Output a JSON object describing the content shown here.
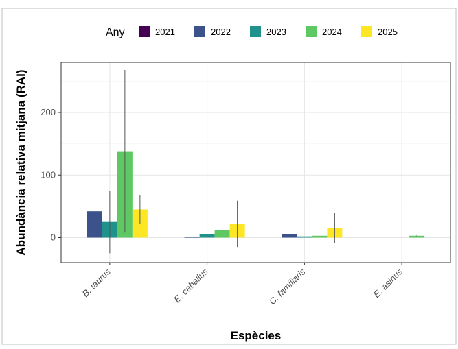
{
  "chart_data": {
    "type": "bar",
    "title": "",
    "xlabel": "Espècies",
    "ylabel": "Abundància relativa mitjana (RAI)",
    "categories": [
      "B. taurus",
      "E. caballus",
      "C. familiaris",
      "E. asinus"
    ],
    "yticks": [
      0,
      100,
      200
    ],
    "ylim": [
      -40,
      280
    ],
    "grid": true,
    "legend": {
      "title": "Any",
      "position": "top"
    },
    "colors": {
      "2021": "#440154",
      "2022": "#3b528b",
      "2023": "#21918c",
      "2024": "#5ec962",
      "2025": "#fde725"
    },
    "series": [
      {
        "name": "2021",
        "values": [
          null,
          null,
          null,
          null
        ],
        "errors": [
          null,
          null,
          null,
          null
        ]
      },
      {
        "name": "2022",
        "values": [
          42,
          1,
          5,
          null
        ],
        "errors": [
          null,
          null,
          null,
          null
        ]
      },
      {
        "name": "2023",
        "values": [
          25,
          5,
          2,
          null
        ],
        "errors": [
          50,
          null,
          null,
          null
        ]
      },
      {
        "name": "2024",
        "values": [
          138,
          12,
          3,
          3
        ],
        "errors": [
          130,
          2,
          null,
          1
        ]
      },
      {
        "name": "2025",
        "values": [
          45,
          22,
          15,
          null
        ],
        "errors": [
          23,
          37,
          24,
          null
        ]
      }
    ]
  }
}
